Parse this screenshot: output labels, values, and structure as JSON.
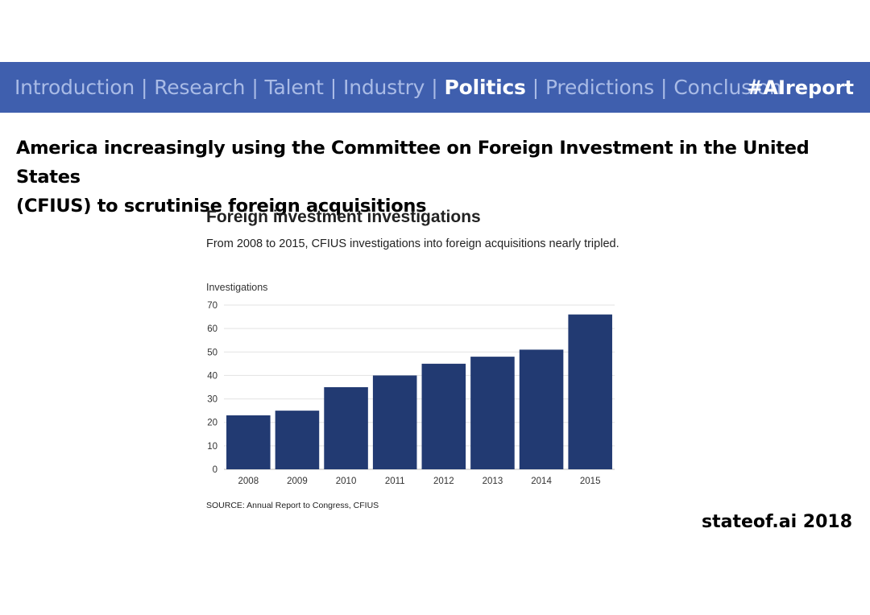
{
  "nav": {
    "items": [
      {
        "label": "Introduction",
        "active": false
      },
      {
        "label": "Research",
        "active": false
      },
      {
        "label": "Talent",
        "active": false
      },
      {
        "label": "Industry",
        "active": false
      },
      {
        "label": "Politics",
        "active": true
      },
      {
        "label": "Predictions",
        "active": false
      },
      {
        "label": "Conclusion",
        "active": false
      }
    ],
    "separator": "|",
    "hashtag": "#AIreport"
  },
  "headline_line1": "America increasingly using the Committee on Foreign Investment in the United States",
  "headline_line2": "(CFIUS) to scrutinise foreign acquisitions",
  "footer": {
    "brand": "stateof.ai 2018"
  },
  "colors": {
    "nav_bg": "#3f5fae",
    "bar": "#223a72",
    "nav_text": "#a9bbe6"
  },
  "chart_data": {
    "type": "bar",
    "title": "Foreign investment investigations",
    "subtitle": "From 2008 to 2015, CFIUS investigations into foreign acquisitions nearly tripled.",
    "ylabel": "Investigations",
    "xlabel": "",
    "categories": [
      "2008",
      "2009",
      "2010",
      "2011",
      "2012",
      "2013",
      "2014",
      "2015"
    ],
    "values": [
      23,
      25,
      35,
      40,
      45,
      48,
      51,
      66
    ],
    "ylim": [
      0,
      70
    ],
    "yticks": [
      0,
      10,
      20,
      30,
      40,
      50,
      60,
      70
    ],
    "grid": true,
    "source": "SOURCE: Annual Report to Congress, CFIUS"
  }
}
